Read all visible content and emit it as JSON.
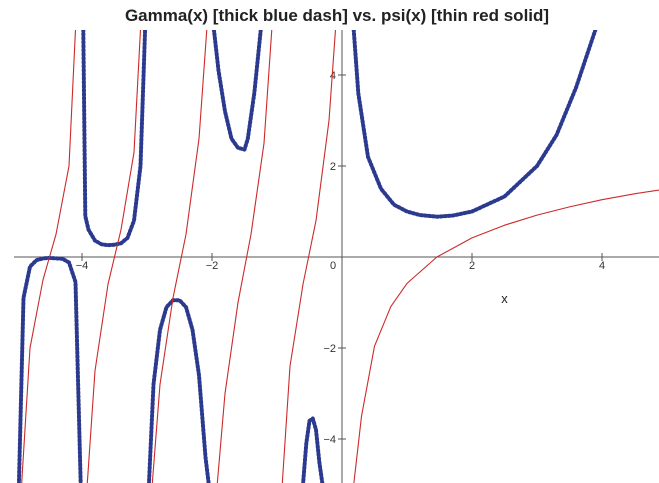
{
  "chart_data": {
    "type": "line",
    "title": "Gamma(x) [thick blue dash] vs. psi(x) [thin red solid]",
    "xlabel": "x",
    "ylabel": "",
    "xlim": [
      -5,
      5
    ],
    "ylim": [
      -5,
      5
    ],
    "x_ticks": [
      {
        "value": -4,
        "label": "−4"
      },
      {
        "value": -2,
        "label": "−2"
      },
      {
        "value": 0,
        "label": "0"
      },
      {
        "value": 2,
        "label": "2"
      },
      {
        "value": 4,
        "label": "4"
      }
    ],
    "y_ticks": [
      {
        "value": -4,
        "label": "−4"
      },
      {
        "value": -2,
        "label": "−2"
      },
      {
        "value": 2,
        "label": "2"
      },
      {
        "value": 4,
        "label": "4"
      }
    ],
    "grid": false,
    "legend": "none",
    "series": [
      {
        "function": "Gamma",
        "color": "#2b3a8f",
        "style": "thick-dashed",
        "points": [
          [
            -4.97,
            -5.0
          ],
          [
            -4.9,
            -0.9
          ],
          [
            -4.8,
            -0.21
          ],
          [
            -4.7,
            -0.07
          ],
          [
            -4.6,
            -0.03
          ],
          [
            -4.5,
            -0.02
          ],
          [
            -4.4,
            -0.03
          ],
          [
            -4.3,
            -0.04
          ],
          [
            -4.2,
            -0.12
          ],
          [
            -4.1,
            -0.55
          ],
          [
            -4.02,
            -5.0
          ],
          [
            -3.98,
            5.0
          ],
          [
            -3.95,
            0.9
          ],
          [
            -3.9,
            0.6
          ],
          [
            -3.8,
            0.36
          ],
          [
            -3.7,
            0.28
          ],
          [
            -3.6,
            0.26
          ],
          [
            -3.5,
            0.27
          ],
          [
            -3.4,
            0.3
          ],
          [
            -3.3,
            0.42
          ],
          [
            -3.2,
            0.8
          ],
          [
            -3.1,
            2.0
          ],
          [
            -3.03,
            5.0
          ],
          [
            -2.97,
            -5.0
          ],
          [
            -2.9,
            -2.8
          ],
          [
            -2.8,
            -1.6
          ],
          [
            -2.7,
            -1.1
          ],
          [
            -2.6,
            -0.95
          ],
          [
            -2.5,
            -0.95
          ],
          [
            -2.4,
            -1.1
          ],
          [
            -2.3,
            -1.6
          ],
          [
            -2.2,
            -2.6
          ],
          [
            -2.1,
            -4.4
          ],
          [
            -2.05,
            -5.0
          ],
          [
            -1.97,
            5.0
          ],
          [
            -1.9,
            4.1
          ],
          [
            -1.8,
            3.2
          ],
          [
            -1.7,
            2.6
          ],
          [
            -1.6,
            2.4
          ],
          [
            -1.5,
            2.36
          ],
          [
            -1.45,
            2.6
          ],
          [
            -1.35,
            3.6
          ],
          [
            -1.25,
            5.0
          ],
          [
            -0.6,
            -5.0
          ],
          [
            -0.55,
            -4.1
          ],
          [
            -0.5,
            -3.6
          ],
          [
            -0.45,
            -3.55
          ],
          [
            -0.4,
            -3.8
          ],
          [
            -0.35,
            -4.5
          ],
          [
            -0.3,
            -5.0
          ],
          [
            0.18,
            5.0
          ],
          [
            0.25,
            3.6
          ],
          [
            0.4,
            2.2
          ],
          [
            0.6,
            1.5
          ],
          [
            0.8,
            1.15
          ],
          [
            1.0,
            1.0
          ],
          [
            1.2,
            0.92
          ],
          [
            1.46,
            0.886
          ],
          [
            1.7,
            0.91
          ],
          [
            2.0,
            1.0
          ],
          [
            2.5,
            1.33
          ],
          [
            3.0,
            2.0
          ],
          [
            3.3,
            2.68
          ],
          [
            3.6,
            3.72
          ],
          [
            3.9,
            5.0
          ]
        ]
      },
      {
        "function": "psi",
        "color": "#cc2a2a",
        "style": "thin-solid",
        "points": [
          [
            -4.93,
            -5.0
          ],
          [
            -4.8,
            -2.0
          ],
          [
            -4.6,
            -0.5
          ],
          [
            -4.4,
            0.5
          ],
          [
            -4.2,
            2.0
          ],
          [
            -4.1,
            5.0
          ],
          [
            -3.92,
            -5.0
          ],
          [
            -3.8,
            -2.5
          ],
          [
            -3.6,
            -0.6
          ],
          [
            -3.4,
            0.6
          ],
          [
            -3.2,
            2.3
          ],
          [
            -3.1,
            5.0
          ],
          [
            -2.92,
            -5.0
          ],
          [
            -2.8,
            -2.8
          ],
          [
            -2.6,
            -0.9
          ],
          [
            -2.4,
            0.5
          ],
          [
            -2.2,
            2.6
          ],
          [
            -2.08,
            5.0
          ],
          [
            -1.92,
            -5.0
          ],
          [
            -1.8,
            -3.0
          ],
          [
            -1.6,
            -1.0
          ],
          [
            -1.4,
            0.5
          ],
          [
            -1.2,
            2.5
          ],
          [
            -1.08,
            5.0
          ],
          [
            -0.92,
            -5.0
          ],
          [
            -0.8,
            -2.4
          ],
          [
            -0.6,
            -0.6
          ],
          [
            -0.4,
            0.8
          ],
          [
            -0.2,
            3.0
          ],
          [
            -0.1,
            5.0
          ],
          [
            0.18,
            -5.0
          ],
          [
            0.3,
            -3.5
          ],
          [
            0.5,
            -1.96
          ],
          [
            0.75,
            -1.09
          ],
          [
            1.0,
            -0.58
          ],
          [
            1.46,
            0.0
          ],
          [
            2.0,
            0.42
          ],
          [
            2.5,
            0.7
          ],
          [
            3.0,
            0.92
          ],
          [
            3.5,
            1.1
          ],
          [
            4.0,
            1.26
          ],
          [
            4.5,
            1.39
          ],
          [
            5.0,
            1.5
          ]
        ]
      }
    ]
  }
}
